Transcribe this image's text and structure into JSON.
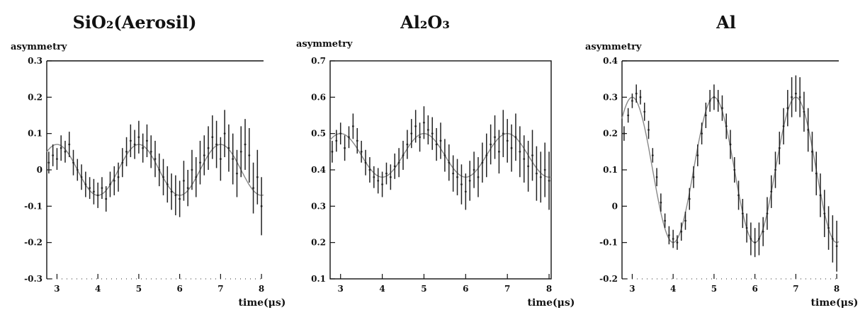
{
  "chart_data": [
    {
      "type": "scatter",
      "title": "SiO₂(Aerosil)",
      "ylabel": "asymmetry",
      "xlabel": "time(μs)",
      "xlim": [
        2.75,
        8.05
      ],
      "ylim": [
        -0.3,
        0.3
      ],
      "xticks": [
        3,
        4,
        5,
        6,
        7,
        8
      ],
      "yticks": [
        -0.3,
        -0.2,
        -0.1,
        0,
        0.1,
        0.2,
        0.3
      ],
      "ytick_labels": [
        "-0.3",
        "-0.2",
        "-0.1",
        "0",
        "0.1",
        "0.2",
        "0.3"
      ],
      "frame": "top-left-bottom",
      "fit": {
        "offset": 0.0,
        "amplitude": 0.07,
        "period": 2.0,
        "phase_x": 3.0
      },
      "points": [
        [
          2.8,
          0.02
        ],
        [
          2.9,
          0.04
        ],
        [
          3.0,
          0.03
        ],
        [
          3.1,
          0.06
        ],
        [
          3.2,
          0.05
        ],
        [
          3.3,
          0.07
        ],
        [
          3.4,
          0.02
        ],
        [
          3.5,
          0.0
        ],
        [
          3.6,
          -0.02
        ],
        [
          3.7,
          -0.04
        ],
        [
          3.8,
          -0.05
        ],
        [
          3.9,
          -0.06
        ],
        [
          4.0,
          -0.07
        ],
        [
          4.1,
          -0.05
        ],
        [
          4.2,
          -0.08
        ],
        [
          4.3,
          -0.04
        ],
        [
          4.4,
          -0.03
        ],
        [
          4.5,
          -0.02
        ],
        [
          4.6,
          0.02
        ],
        [
          4.7,
          0.05
        ],
        [
          4.8,
          0.08
        ],
        [
          4.9,
          0.07
        ],
        [
          5.0,
          0.09
        ],
        [
          5.1,
          0.06
        ],
        [
          5.2,
          0.08
        ],
        [
          5.3,
          0.05
        ],
        [
          5.4,
          0.03
        ],
        [
          5.5,
          0.0
        ],
        [
          5.6,
          -0.02
        ],
        [
          5.7,
          -0.04
        ],
        [
          5.8,
          -0.06
        ],
        [
          5.9,
          -0.07
        ],
        [
          6.0,
          -0.08
        ],
        [
          6.1,
          -0.03
        ],
        [
          6.2,
          -0.05
        ],
        [
          6.3,
          0.0
        ],
        [
          6.4,
          -0.02
        ],
        [
          6.5,
          0.02
        ],
        [
          6.6,
          0.04
        ],
        [
          6.7,
          0.06
        ],
        [
          6.8,
          0.09
        ],
        [
          6.9,
          0.07
        ],
        [
          7.0,
          0.03
        ],
        [
          7.1,
          0.1
        ],
        [
          7.2,
          0.06
        ],
        [
          7.3,
          0.03
        ],
        [
          7.4,
          -0.01
        ],
        [
          7.5,
          0.05
        ],
        [
          7.6,
          0.07
        ],
        [
          7.7,
          0.04
        ],
        [
          7.8,
          -0.05
        ],
        [
          7.9,
          -0.02
        ],
        [
          8.0,
          -0.1
        ]
      ],
      "errors": [
        0.03,
        0.03,
        0.03,
        0.035,
        0.03,
        0.035,
        0.035,
        0.03,
        0.035,
        0.035,
        0.03,
        0.035,
        0.035,
        0.03,
        0.035,
        0.035,
        0.04,
        0.04,
        0.04,
        0.04,
        0.045,
        0.04,
        0.045,
        0.04,
        0.045,
        0.045,
        0.05,
        0.045,
        0.05,
        0.05,
        0.05,
        0.055,
        0.05,
        0.055,
        0.05,
        0.055,
        0.055,
        0.06,
        0.055,
        0.06,
        0.06,
        0.065,
        0.06,
        0.065,
        0.065,
        0.07,
        0.065,
        0.07,
        0.07,
        0.075,
        0.07,
        0.075,
        0.08
      ]
    },
    {
      "type": "scatter",
      "title": "Al₂O₃",
      "ylabel": "asymmetry",
      "xlabel": "time(μs)",
      "xlim": [
        2.75,
        8.05
      ],
      "ylim": [
        0.1,
        0.7
      ],
      "xticks": [
        3,
        4,
        5,
        6,
        7,
        8
      ],
      "yticks": [
        0.1,
        0.2,
        0.3,
        0.4,
        0.5,
        0.6,
        0.7
      ],
      "ytick_labels": [
        "0.1",
        "0.2",
        "0.3",
        "0.4",
        "0.5",
        "0.6",
        "0.7"
      ],
      "frame": "box",
      "fit": {
        "offset": 0.44,
        "amplitude": 0.06,
        "period": 2.0,
        "phase_x": 3.0
      },
      "points": [
        [
          2.8,
          0.45
        ],
        [
          2.9,
          0.48
        ],
        [
          3.0,
          0.5
        ],
        [
          3.1,
          0.46
        ],
        [
          3.2,
          0.49
        ],
        [
          3.3,
          0.52
        ],
        [
          3.4,
          0.48
        ],
        [
          3.5,
          0.45
        ],
        [
          3.6,
          0.42
        ],
        [
          3.7,
          0.4
        ],
        [
          3.8,
          0.38
        ],
        [
          3.9,
          0.37
        ],
        [
          4.0,
          0.36
        ],
        [
          4.1,
          0.39
        ],
        [
          4.2,
          0.38
        ],
        [
          4.3,
          0.41
        ],
        [
          4.4,
          0.42
        ],
        [
          4.5,
          0.44
        ],
        [
          4.6,
          0.47
        ],
        [
          4.7,
          0.5
        ],
        [
          4.8,
          0.52
        ],
        [
          4.9,
          0.49
        ],
        [
          5.0,
          0.53
        ],
        [
          5.1,
          0.51
        ],
        [
          5.2,
          0.5
        ],
        [
          5.3,
          0.47
        ],
        [
          5.4,
          0.48
        ],
        [
          5.5,
          0.44
        ],
        [
          5.6,
          0.42
        ],
        [
          5.7,
          0.39
        ],
        [
          5.8,
          0.38
        ],
        [
          5.9,
          0.36
        ],
        [
          6.0,
          0.34
        ],
        [
          6.1,
          0.37
        ],
        [
          6.2,
          0.4
        ],
        [
          6.3,
          0.38
        ],
        [
          6.4,
          0.42
        ],
        [
          6.5,
          0.44
        ],
        [
          6.6,
          0.47
        ],
        [
          6.7,
          0.49
        ],
        [
          6.8,
          0.45
        ],
        [
          6.9,
          0.5
        ],
        [
          7.0,
          0.48
        ],
        [
          7.1,
          0.46
        ],
        [
          7.2,
          0.49
        ],
        [
          7.3,
          0.45
        ],
        [
          7.4,
          0.43
        ],
        [
          7.5,
          0.41
        ],
        [
          7.6,
          0.44
        ],
        [
          7.7,
          0.39
        ],
        [
          7.8,
          0.38
        ],
        [
          7.9,
          0.4
        ],
        [
          8.0,
          0.37
        ]
      ],
      "errors": [
        0.03,
        0.03,
        0.03,
        0.035,
        0.03,
        0.035,
        0.035,
        0.03,
        0.035,
        0.035,
        0.03,
        0.035,
        0.035,
        0.03,
        0.035,
        0.035,
        0.04,
        0.04,
        0.04,
        0.04,
        0.045,
        0.04,
        0.045,
        0.04,
        0.045,
        0.045,
        0.05,
        0.045,
        0.05,
        0.05,
        0.05,
        0.055,
        0.05,
        0.055,
        0.05,
        0.055,
        0.055,
        0.06,
        0.055,
        0.06,
        0.06,
        0.065,
        0.06,
        0.065,
        0.065,
        0.07,
        0.065,
        0.07,
        0.07,
        0.075,
        0.07,
        0.075,
        0.08
      ]
    },
    {
      "type": "scatter",
      "title": "Al",
      "ylabel": "asymmetry",
      "xlabel": "time(μs)",
      "xlim": [
        2.75,
        8.05
      ],
      "ylim": [
        -0.2,
        0.4
      ],
      "xticks": [
        3,
        4,
        5,
        6,
        7,
        8
      ],
      "yticks": [
        -0.2,
        -0.1,
        0,
        0.1,
        0.2,
        0.3,
        0.4
      ],
      "ytick_labels": [
        "-0.2",
        "-0.1",
        "0",
        "0.1",
        "0.2",
        "0.3",
        "0.4"
      ],
      "frame": "top-left-bottom",
      "fit": {
        "offset": 0.1,
        "amplitude": 0.2,
        "period": 2.0,
        "phase_x": 3.0
      },
      "points": [
        [
          2.8,
          0.2
        ],
        [
          2.9,
          0.25
        ],
        [
          3.0,
          0.29
        ],
        [
          3.1,
          0.31
        ],
        [
          3.2,
          0.3
        ],
        [
          3.3,
          0.26
        ],
        [
          3.4,
          0.21
        ],
        [
          3.5,
          0.14
        ],
        [
          3.6,
          0.08
        ],
        [
          3.7,
          0.01
        ],
        [
          3.8,
          -0.04
        ],
        [
          3.9,
          -0.08
        ],
        [
          4.0,
          -0.09
        ],
        [
          4.1,
          -0.1
        ],
        [
          4.2,
          -0.07
        ],
        [
          4.3,
          -0.04
        ],
        [
          4.4,
          0.02
        ],
        [
          4.5,
          0.08
        ],
        [
          4.6,
          0.14
        ],
        [
          4.7,
          0.2
        ],
        [
          4.8,
          0.25
        ],
        [
          4.9,
          0.29
        ],
        [
          5.0,
          0.3
        ],
        [
          5.1,
          0.29
        ],
        [
          5.2,
          0.27
        ],
        [
          5.3,
          0.22
        ],
        [
          5.4,
          0.17
        ],
        [
          5.5,
          0.1
        ],
        [
          5.6,
          0.03
        ],
        [
          5.7,
          -0.02
        ],
        [
          5.8,
          -0.06
        ],
        [
          5.9,
          -0.09
        ],
        [
          6.0,
          -0.1
        ],
        [
          6.1,
          -0.09
        ],
        [
          6.2,
          -0.07
        ],
        [
          6.3,
          -0.02
        ],
        [
          6.4,
          0.04
        ],
        [
          6.5,
          0.1
        ],
        [
          6.6,
          0.16
        ],
        [
          6.7,
          0.22
        ],
        [
          6.8,
          0.27
        ],
        [
          6.9,
          0.3
        ],
        [
          7.0,
          0.31
        ],
        [
          7.1,
          0.3
        ],
        [
          7.2,
          0.26
        ],
        [
          7.3,
          0.21
        ],
        [
          7.4,
          0.15
        ],
        [
          7.5,
          0.09
        ],
        [
          7.6,
          0.03
        ],
        [
          7.7,
          -0.02
        ],
        [
          7.8,
          -0.06
        ],
        [
          7.9,
          -0.09
        ],
        [
          8.0,
          -0.11
        ]
      ],
      "errors": [
        0.02,
        0.02,
        0.02,
        0.025,
        0.02,
        0.025,
        0.025,
        0.02,
        0.025,
        0.025,
        0.02,
        0.025,
        0.025,
        0.02,
        0.025,
        0.025,
        0.03,
        0.03,
        0.03,
        0.03,
        0.035,
        0.03,
        0.035,
        0.03,
        0.035,
        0.035,
        0.04,
        0.035,
        0.04,
        0.04,
        0.04,
        0.045,
        0.04,
        0.045,
        0.04,
        0.045,
        0.045,
        0.05,
        0.045,
        0.05,
        0.05,
        0.055,
        0.05,
        0.055,
        0.055,
        0.06,
        0.055,
        0.06,
        0.06,
        0.065,
        0.06,
        0.065,
        0.07
      ]
    }
  ]
}
